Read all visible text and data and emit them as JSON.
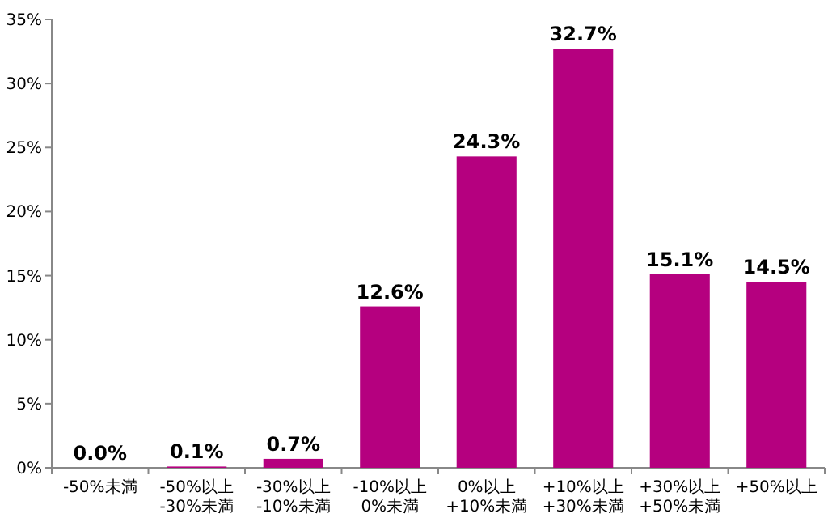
{
  "chart_data": {
    "type": "bar",
    "categories": [
      "-50%未満",
      "-50%以上\n-30%未満",
      "-30%以上\n-10%未満",
      "-10%以上\n0%未満",
      "0%以上\n+10%未満",
      "+10%以上\n+30%未満",
      "+30%以上\n+50%未満",
      "+50%以上"
    ],
    "values": [
      0.0,
      0.1,
      0.7,
      12.6,
      24.3,
      32.7,
      15.1,
      14.5
    ],
    "value_labels": [
      "0.0%",
      "0.1%",
      "0.7%",
      "12.6%",
      "24.3%",
      "32.7%",
      "15.1%",
      "14.5%"
    ],
    "color": "#b5007f",
    "ylim": [
      0,
      35
    ],
    "yticks": [
      {
        "value": 0,
        "label": "0%"
      },
      {
        "value": 5,
        "label": "5%"
      },
      {
        "value": 10,
        "label": "10%"
      },
      {
        "value": 15,
        "label": "15%"
      },
      {
        "value": 20,
        "label": "20%"
      },
      {
        "value": 25,
        "label": "25%"
      },
      {
        "value": 30,
        "label": "30%"
      },
      {
        "value": 35,
        "label": "35%"
      }
    ],
    "grid": false
  }
}
